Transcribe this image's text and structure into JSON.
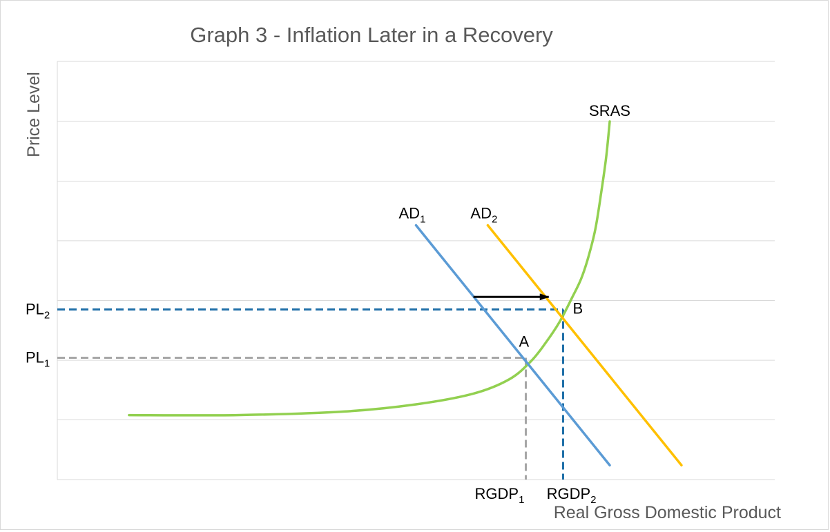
{
  "chart_data": {
    "type": "line",
    "title": "Graph 3 - Inflation Later in a Recovery",
    "xlabel": "Real Gross Domestic Product",
    "ylabel": "Price Level",
    "grid": true,
    "legend": "none",
    "xlim": [
      0,
      100
    ],
    "ylim": [
      0,
      100
    ],
    "series": [
      {
        "name": "SRAS",
        "color": "#92d050",
        "points": [
          [
            10,
            18
          ],
          [
            25,
            18
          ],
          [
            40,
            19
          ],
          [
            50,
            21
          ],
          [
            58,
            24
          ],
          [
            63,
            28
          ],
          [
            66,
            33
          ],
          [
            68,
            38
          ],
          [
            70,
            44
          ],
          [
            71.8,
            51
          ],
          [
            73,
            56
          ],
          [
            74,
            62
          ],
          [
            75,
            70
          ],
          [
            75.8,
            80
          ],
          [
            76.5,
            90
          ],
          [
            77,
            100
          ]
        ]
      },
      {
        "name": "AD1",
        "label_main": "AD",
        "label_sub": "1",
        "color": "#5b9bd5",
        "points": [
          [
            50,
            71
          ],
          [
            77,
            4
          ]
        ]
      },
      {
        "name": "AD2",
        "label_main": "AD",
        "label_sub": "2",
        "color": "#ffc000",
        "points": [
          [
            60,
            71
          ],
          [
            87,
            4
          ]
        ]
      }
    ],
    "shift_arrow": {
      "from": [
        58,
        51
      ],
      "to": [
        68.5,
        51
      ],
      "color": "#000000"
    },
    "equilibria": [
      {
        "label": "A",
        "x": 65.3,
        "y": 34,
        "price_label": "PL",
        "price_sub": "1",
        "gdp_label": "RGDP",
        "gdp_sub": "1",
        "color": "#a6a6a6"
      },
      {
        "label": "B",
        "x": 70.5,
        "y": 47.5,
        "price_label": "PL",
        "price_sub": "2",
        "gdp_label": "RGDP",
        "gdp_sub": "2",
        "color": "#1f6fa8"
      }
    ],
    "gridlines_y": [
      0,
      16.7,
      33.3,
      50,
      66.7,
      83.3,
      100
    ]
  }
}
